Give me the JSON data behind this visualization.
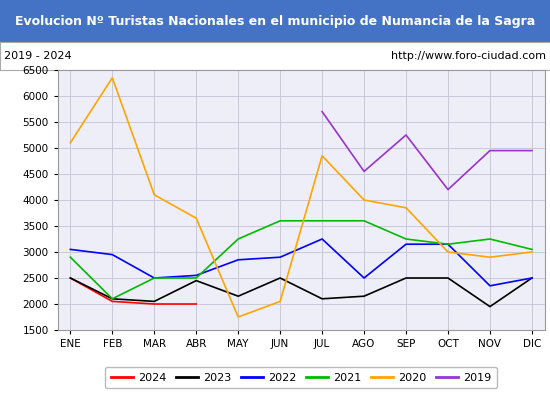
{
  "title": "Evolucion Nº Turistas Nacionales en el municipio de Numancia de la Sagra",
  "subtitle_left": "2019 - 2024",
  "subtitle_right": "http://www.foro-ciudad.com",
  "title_bg_color": "#4472c4",
  "title_text_color": "#ffffff",
  "months": [
    "ENE",
    "FEB",
    "MAR",
    "ABR",
    "MAY",
    "JUN",
    "JUL",
    "AGO",
    "SEP",
    "OCT",
    "NOV",
    "DIC"
  ],
  "ylim": [
    1500,
    6500
  ],
  "yticks": [
    1500,
    2000,
    2500,
    3000,
    3500,
    4000,
    4500,
    5000,
    5500,
    6000,
    6500
  ],
  "series": {
    "2024": {
      "color": "#ff0000",
      "data": [
        2500,
        2050,
        2000,
        2000,
        null,
        null,
        null,
        null,
        null,
        null,
        null,
        null
      ]
    },
    "2023": {
      "color": "#000000",
      "data": [
        2500,
        2100,
        2050,
        2450,
        2150,
        2500,
        2100,
        2150,
        2500,
        2500,
        1950,
        2500
      ]
    },
    "2022": {
      "color": "#0000ff",
      "data": [
        3050,
        2950,
        2500,
        2550,
        2850,
        2900,
        3250,
        2500,
        3150,
        3150,
        2350,
        2500
      ]
    },
    "2021": {
      "color": "#00bb00",
      "data": [
        2900,
        2100,
        2500,
        2500,
        3250,
        3600,
        3600,
        3600,
        3250,
        3150,
        3250,
        3050
      ]
    },
    "2020": {
      "color": "#ffa500",
      "data": [
        5100,
        6350,
        4100,
        3650,
        1750,
        2050,
        4850,
        4000,
        3850,
        3000,
        2900,
        3000
      ]
    },
    "2019": {
      "color": "#9933cc",
      "data": [
        null,
        null,
        null,
        null,
        null,
        null,
        5700,
        4550,
        5250,
        4200,
        4950,
        4950
      ]
    }
  },
  "grid_color": "#c8c8d8",
  "bg_color": "#ffffff",
  "plot_bg_color": "#eeeef8",
  "legend_order": [
    "2024",
    "2023",
    "2022",
    "2021",
    "2020",
    "2019"
  ]
}
